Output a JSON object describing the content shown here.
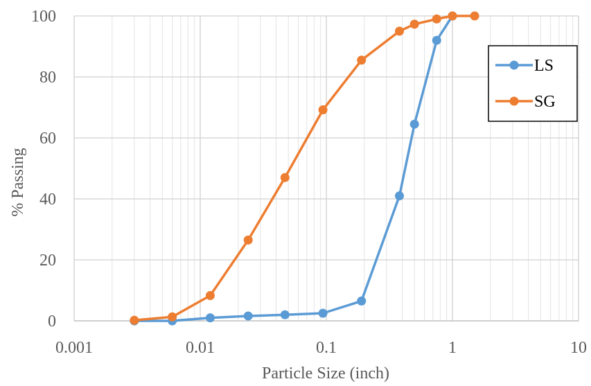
{
  "chart_data": {
    "type": "line",
    "title": "",
    "xlabel": "Particle Size (inch)",
    "ylabel": "% Passing",
    "x_scale": "log",
    "xlim": [
      0.001,
      10
    ],
    "ylim": [
      0,
      100
    ],
    "x_ticks": [
      "0.001",
      "0.01",
      "0.1",
      "1",
      "10"
    ],
    "y_ticks": [
      "0",
      "20",
      "40",
      "60",
      "80",
      "100"
    ],
    "grid": true,
    "legend_position": "right",
    "series": [
      {
        "name": "LS",
        "color": "#5B9BD5",
        "points": [
          {
            "x": 0.003,
            "y": 0
          },
          {
            "x": 0.006,
            "y": 0
          },
          {
            "x": 0.012,
            "y": 1
          },
          {
            "x": 0.024,
            "y": 1.6
          },
          {
            "x": 0.047,
            "y": 2
          },
          {
            "x": 0.094,
            "y": 2.5
          },
          {
            "x": 0.19,
            "y": 6.5
          },
          {
            "x": 0.38,
            "y": 41
          },
          {
            "x": 0.5,
            "y": 64.5
          },
          {
            "x": 0.75,
            "y": 92
          },
          {
            "x": 1.0,
            "y": 100
          }
        ]
      },
      {
        "name": "SG",
        "color": "#ED7D31",
        "points": [
          {
            "x": 0.003,
            "y": 0.2
          },
          {
            "x": 0.006,
            "y": 1.3
          },
          {
            "x": 0.012,
            "y": 8.3
          },
          {
            "x": 0.024,
            "y": 26.5
          },
          {
            "x": 0.047,
            "y": 47
          },
          {
            "x": 0.094,
            "y": 69.2
          },
          {
            "x": 0.19,
            "y": 85.5
          },
          {
            "x": 0.38,
            "y": 95
          },
          {
            "x": 0.5,
            "y": 97.3
          },
          {
            "x": 0.75,
            "y": 99
          },
          {
            "x": 1.0,
            "y": 100
          },
          {
            "x": 1.5,
            "y": 100
          }
        ]
      }
    ]
  }
}
